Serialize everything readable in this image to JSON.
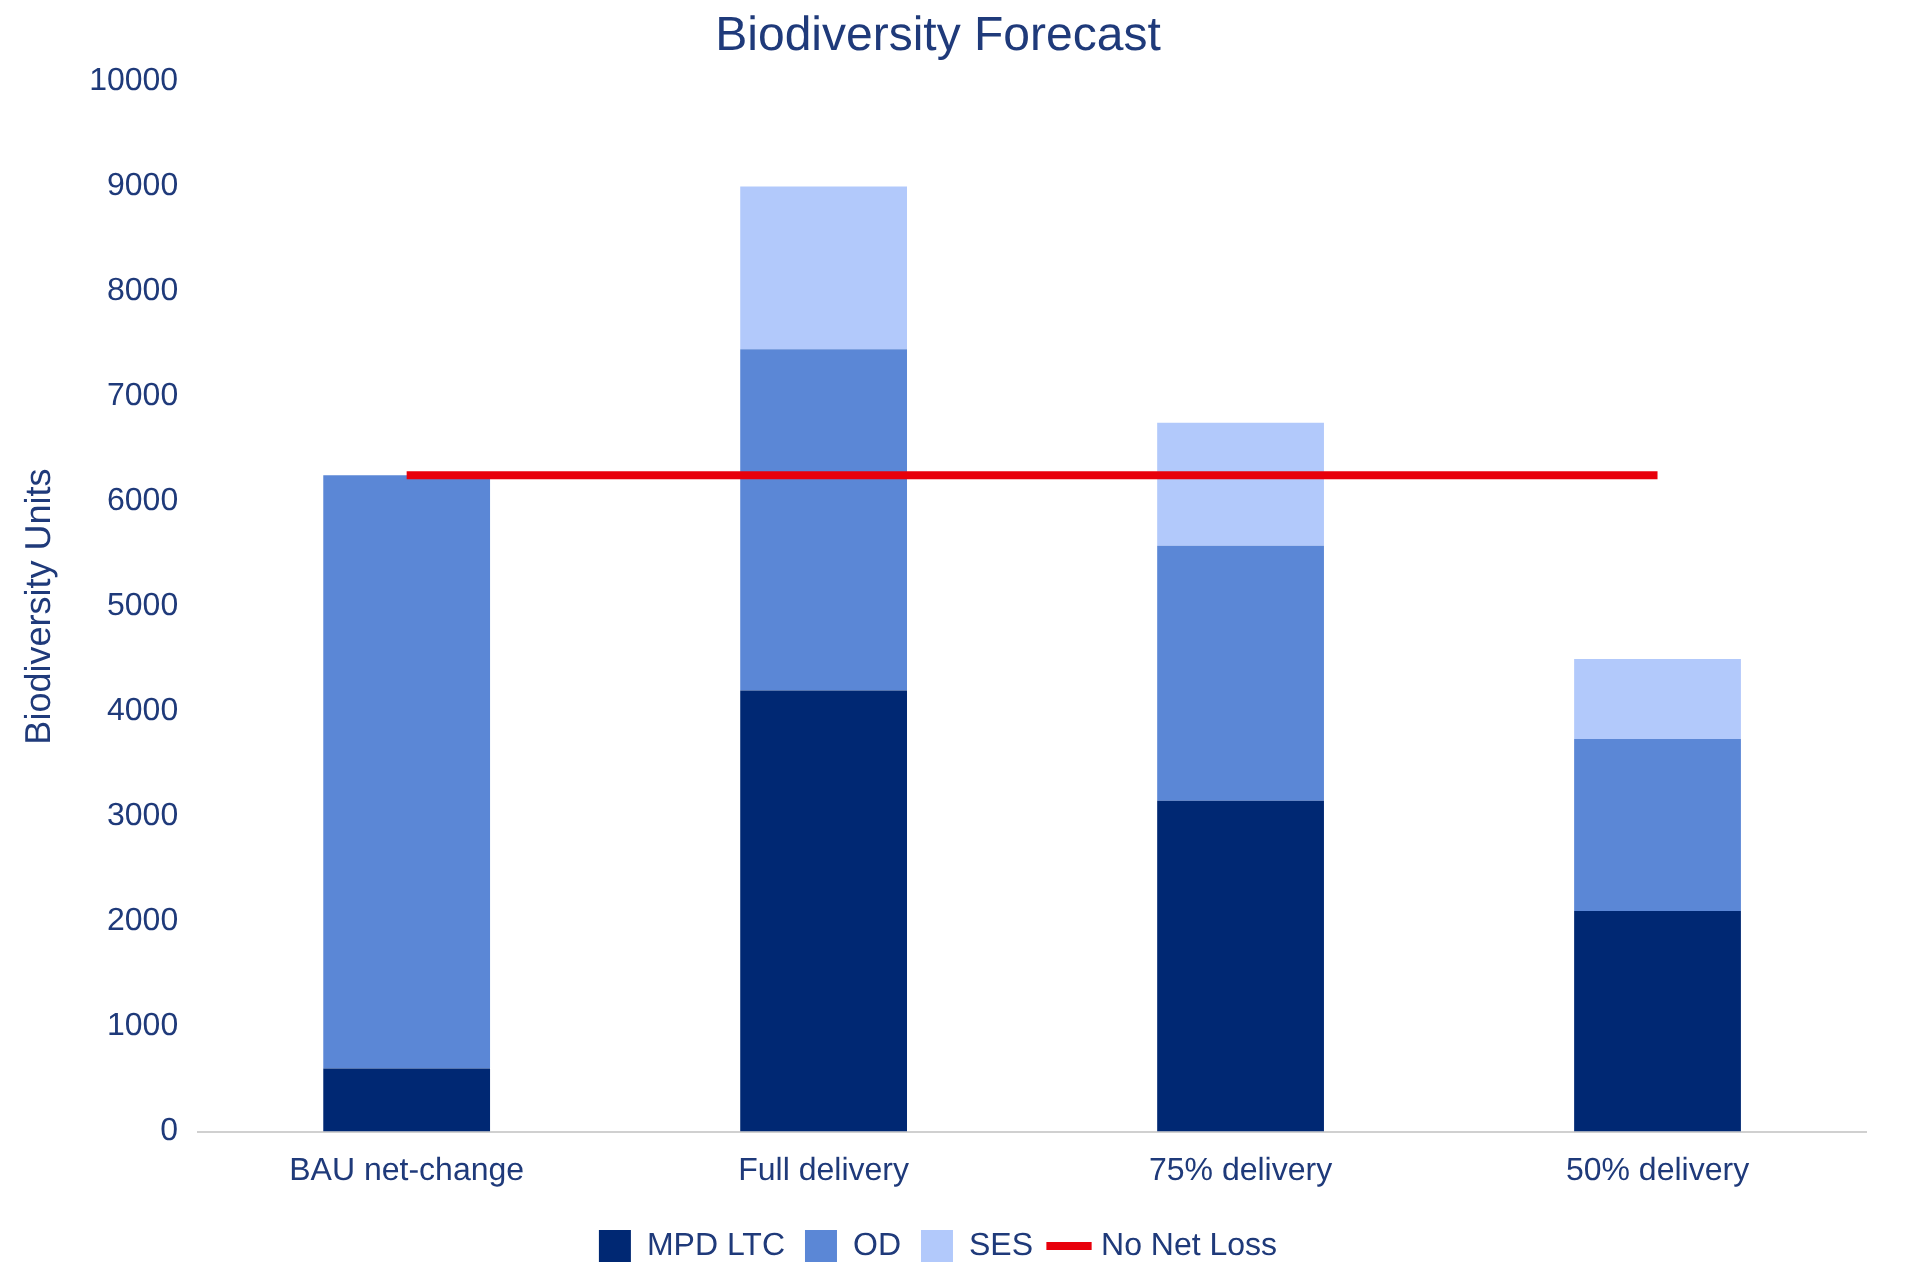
{
  "chart_data": {
    "type": "bar",
    "title": "Biodiversity Forecast",
    "ylabel": "Biodiversity Units",
    "stacked": true,
    "categories": [
      "BAU net-change",
      "Full delivery",
      "75% delivery",
      "50% delivery"
    ],
    "series": [
      {
        "name": "MPD LTC",
        "color": "#002873",
        "values": [
          600,
          4200,
          3150,
          2100
        ]
      },
      {
        "name": "OD",
        "color": "#5b87d6",
        "values": [
          5650,
          3250,
          2430,
          1640
        ]
      },
      {
        "name": "SES",
        "color": "#b2c9fb",
        "values": [
          0,
          1550,
          1170,
          760
        ]
      },
      {
        "name": "No Net Loss",
        "type": "line",
        "color": "#e8000b",
        "values": [
          6250,
          6250,
          6250,
          6250
        ]
      }
    ],
    "ylim": [
      0,
      10000
    ],
    "yticks": [
      0,
      1000,
      2000,
      3000,
      4000,
      5000,
      6000,
      7000,
      8000,
      9000,
      10000
    ],
    "grid": false,
    "legend": "bottom",
    "marker": "none"
  }
}
